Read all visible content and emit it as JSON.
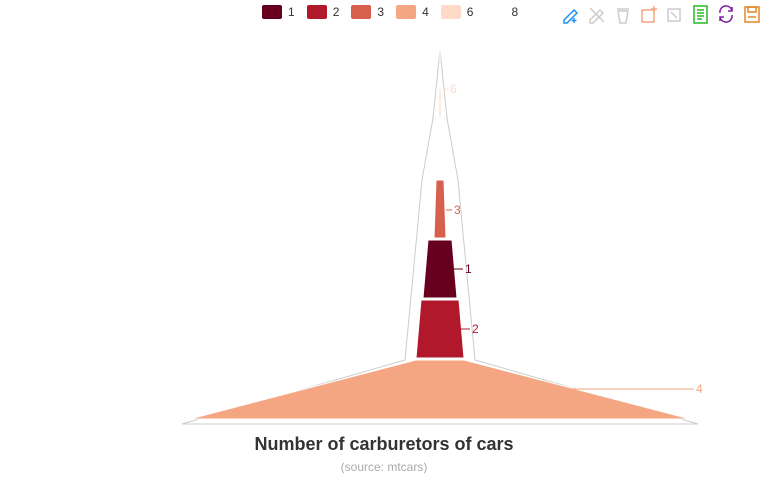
{
  "chart_data": {
    "type": "funnel",
    "title": "Number of carburetors of cars",
    "subtitle": "(source: mtcars)",
    "legend": {
      "position": "top",
      "entries": [
        "1",
        "2",
        "3",
        "4",
        "6",
        "8"
      ]
    },
    "series": [
      {
        "name": "4",
        "value": 10,
        "color": "#f4a582"
      },
      {
        "name": "2",
        "value": 10,
        "color": "#b2182b"
      },
      {
        "name": "1",
        "value": 7,
        "color": "#67001f"
      },
      {
        "name": "3",
        "value": 3,
        "color": "#d6604d"
      },
      {
        "name": "6",
        "value": 1,
        "color": "#fddbc7"
      },
      {
        "name": "8",
        "value": 1,
        "color": "#ffffff"
      }
    ]
  },
  "toolbox": {
    "icons": [
      "line-mark-icon",
      "remove-mark-icon",
      "clear-mark-icon",
      "zoom-icon",
      "zoom-reset-icon",
      "data-view-icon",
      "restore-icon",
      "save-image-icon"
    ],
    "colors": [
      "#1e90ff",
      "#cccccc",
      "#cccccc",
      "#f4a582",
      "#cccccc",
      "#22bb22",
      "#7b1fa2",
      "#e8832a"
    ]
  },
  "colors": {
    "outline": "#cccccc",
    "title": "#333333",
    "subtitle": "#aaaaaa"
  }
}
